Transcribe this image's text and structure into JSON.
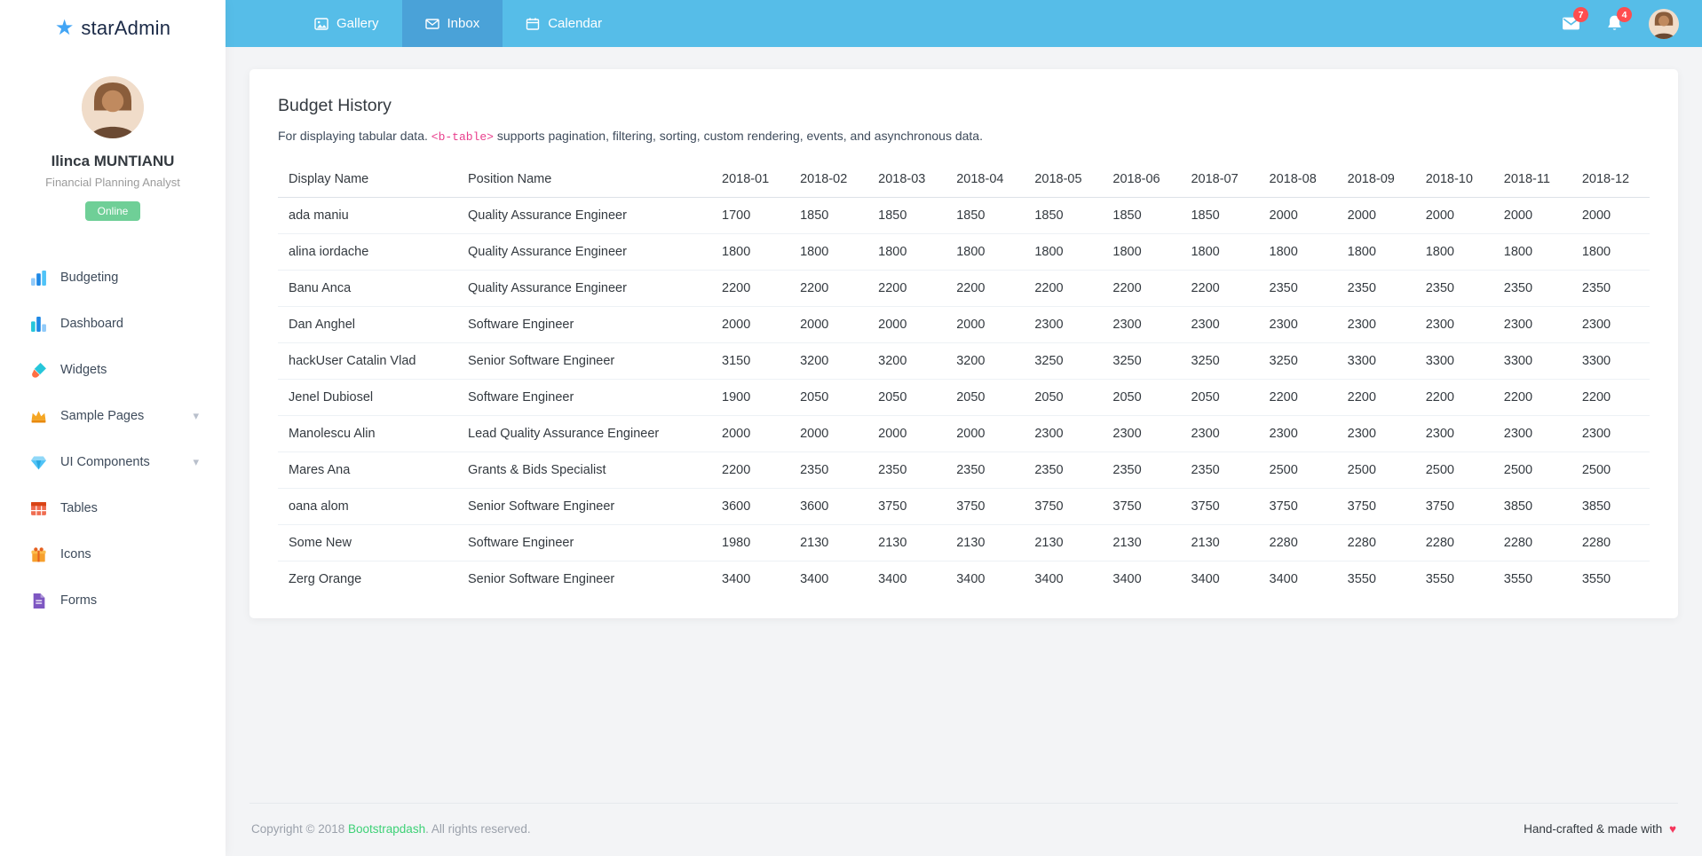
{
  "colors": {
    "navbar_blue": "#56bde8",
    "navbar_active_tab": "#4aa2d8",
    "status_green": "#6fcf97",
    "badge_red": "#ff4d4f",
    "code_pink": "#e83e8c",
    "footer_link_green": "#3dd176",
    "heart_red": "#f5365c",
    "star_blue": "#42a5f5"
  },
  "brand": {
    "text": "starAdmin"
  },
  "profile": {
    "name": "Ilinca MUNTIANU",
    "role": "Financial Planning Analyst",
    "status": "Online"
  },
  "sidebar": {
    "items": [
      {
        "id": "budgeting",
        "label": "Budgeting",
        "icon": "bar-chart",
        "has_chevron": false
      },
      {
        "id": "dashboard",
        "label": "Dashboard",
        "icon": "dashboard",
        "has_chevron": false
      },
      {
        "id": "widgets",
        "label": "Widgets",
        "icon": "brush",
        "has_chevron": false
      },
      {
        "id": "sample-pages",
        "label": "Sample Pages",
        "icon": "crown",
        "has_chevron": true
      },
      {
        "id": "ui-components",
        "label": "UI Components",
        "icon": "gem",
        "has_chevron": true
      },
      {
        "id": "tables",
        "label": "Tables",
        "icon": "table-grid",
        "has_chevron": false
      },
      {
        "id": "icons",
        "label": "Icons",
        "icon": "gift",
        "has_chevron": false
      },
      {
        "id": "forms",
        "label": "Forms",
        "icon": "file",
        "has_chevron": false
      }
    ]
  },
  "navbar": {
    "tabs": [
      {
        "id": "gallery",
        "label": "Gallery",
        "icon": "image",
        "active": false
      },
      {
        "id": "inbox",
        "label": "Inbox",
        "icon": "envelope",
        "active": true
      },
      {
        "id": "calendar",
        "label": "Calendar",
        "icon": "calendar",
        "active": false
      }
    ],
    "mail_badge": "7",
    "bell_badge": "4"
  },
  "page": {
    "title": "Budget History",
    "description_prefix": "For displaying tabular data. ",
    "description_code": "<b-table>",
    "description_suffix": " supports pagination, filtering, sorting, custom rendering, events, and asynchronous data."
  },
  "table": {
    "columns": [
      "Display Name",
      "Position Name",
      "2018-01",
      "2018-02",
      "2018-03",
      "2018-04",
      "2018-05",
      "2018-06",
      "2018-07",
      "2018-08",
      "2018-09",
      "2018-10",
      "2018-11",
      "2018-12"
    ],
    "rows": [
      [
        "ada maniu",
        "Quality Assurance Engineer",
        1700,
        1850,
        1850,
        1850,
        1850,
        1850,
        1850,
        2000,
        2000,
        2000,
        2000,
        2000
      ],
      [
        "alina iordache",
        "Quality Assurance Engineer",
        1800,
        1800,
        1800,
        1800,
        1800,
        1800,
        1800,
        1800,
        1800,
        1800,
        1800,
        1800
      ],
      [
        "Banu Anca",
        "Quality Assurance Engineer",
        2200,
        2200,
        2200,
        2200,
        2200,
        2200,
        2200,
        2350,
        2350,
        2350,
        2350,
        2350
      ],
      [
        "Dan Anghel",
        "Software Engineer",
        2000,
        2000,
        2000,
        2000,
        2300,
        2300,
        2300,
        2300,
        2300,
        2300,
        2300,
        2300
      ],
      [
        "hackUser Catalin Vlad",
        "Senior Software Engineer",
        3150,
        3200,
        3200,
        3200,
        3250,
        3250,
        3250,
        3250,
        3300,
        3300,
        3300,
        3300
      ],
      [
        "Jenel Dubiosel",
        "Software Engineer",
        1900,
        2050,
        2050,
        2050,
        2050,
        2050,
        2050,
        2200,
        2200,
        2200,
        2200,
        2200
      ],
      [
        "Manolescu Alin",
        "Lead Quality Assurance Engineer",
        2000,
        2000,
        2000,
        2000,
        2300,
        2300,
        2300,
        2300,
        2300,
        2300,
        2300,
        2300
      ],
      [
        "Mares Ana",
        "Grants & Bids Specialist",
        2200,
        2350,
        2350,
        2350,
        2350,
        2350,
        2350,
        2500,
        2500,
        2500,
        2500,
        2500
      ],
      [
        "oana alom",
        "Senior Software Engineer",
        3600,
        3600,
        3750,
        3750,
        3750,
        3750,
        3750,
        3750,
        3750,
        3750,
        3850,
        3850
      ],
      [
        "Some New",
        "Software Engineer",
        1980,
        2130,
        2130,
        2130,
        2130,
        2130,
        2130,
        2280,
        2280,
        2280,
        2280,
        2280
      ],
      [
        "Zerg Orange",
        "Senior Software Engineer",
        3400,
        3400,
        3400,
        3400,
        3400,
        3400,
        3400,
        3400,
        3550,
        3550,
        3550,
        3550
      ]
    ]
  },
  "footer": {
    "copyright_prefix": "Copyright © 2018 ",
    "brand_link": "Bootstrapdash",
    "copyright_suffix": ". All rights reserved.",
    "right_text": "Hand-crafted & made with ",
    "heart": "♥"
  }
}
